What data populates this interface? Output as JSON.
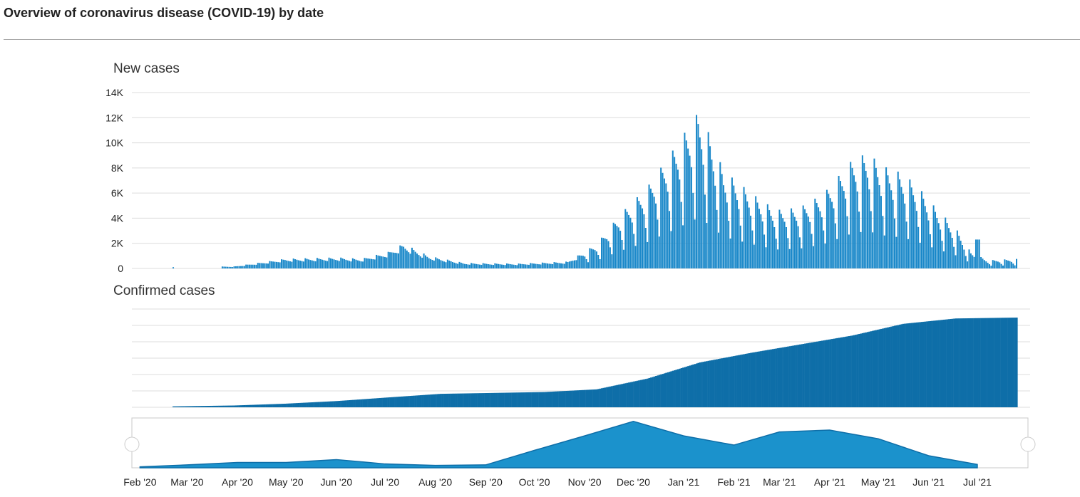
{
  "page": {
    "title": "Overview of coronavirus disease (COVID-19) by date"
  },
  "colors": {
    "bar": "#1a88c9",
    "bar_dark": "#0e6ea8",
    "area": "#1b92cc",
    "grid": "#dcdcdc",
    "navigator_border": "#c8c8c8"
  },
  "chart_data": [
    {
      "type": "bar",
      "title": "New cases",
      "xlabel": "",
      "ylabel": "",
      "ylim": [
        0,
        14000
      ],
      "y_ticks": [
        0,
        2000,
        4000,
        6000,
        8000,
        10000,
        12000,
        14000
      ],
      "y_tick_labels": [
        "0",
        "2K",
        "4K",
        "6K",
        "8K",
        "10K",
        "12K",
        "14K"
      ],
      "grid": true,
      "interval": "daily",
      "x_range": [
        "2020-02-01",
        "2021-07-07"
      ],
      "series": [
        {
          "x": [
            "2020-02-25",
            "2020-04-01",
            "2020-05-01",
            "2020-06-01",
            "2020-06-15",
            "2020-07-01",
            "2020-07-10",
            "2020-07-25",
            "2020-08-15",
            "2020-09-15",
            "2020-10-15",
            "2020-11-01",
            "2020-11-15",
            "2020-12-01",
            "2020-12-15",
            "2020-12-31",
            "2021-01-03",
            "2021-01-15",
            "2021-02-01",
            "2021-02-15",
            "2021-03-01",
            "2021-03-15",
            "2021-04-01",
            "2021-04-10",
            "2021-04-20",
            "2021-05-01",
            "2021-05-10",
            "2021-05-20",
            "2021-06-01",
            "2021-06-10",
            "2021-06-20",
            "2021-07-05"
          ],
          "values": [
            100,
            150,
            700,
            800,
            700,
            1200,
            1800,
            900,
            400,
            350,
            500,
            1800,
            4000,
            6000,
            8500,
            11500,
            11000,
            7200,
            5500,
            4300,
            4500,
            5500,
            8000,
            8500,
            7500,
            7000,
            6000,
            4500,
            3000,
            1200,
            600,
            700
          ]
        }
      ]
    },
    {
      "type": "area",
      "title": "Confirmed cases",
      "xlabel": "",
      "ylabel": "",
      "grid": true,
      "interval": "daily",
      "series": [
        {
          "x": [
            "2020-02-25",
            "2020-04-01",
            "2020-05-01",
            "2020-06-01",
            "2020-07-01",
            "2020-08-01",
            "2020-09-01",
            "2020-10-01",
            "2020-11-01",
            "2020-12-01",
            "2021-01-01",
            "2021-02-01",
            "2021-03-01",
            "2021-04-01",
            "2021-05-01",
            "2021-06-01",
            "2021-07-07"
          ],
          "values": [
            0.01,
            0.02,
            0.04,
            0.07,
            0.11,
            0.15,
            0.16,
            0.17,
            0.2,
            0.32,
            0.5,
            0.61,
            0.7,
            0.8,
            0.93,
            0.99,
            1.0
          ]
        }
      ]
    },
    {
      "type": "area",
      "title": "",
      "role": "range navigator",
      "interval": "monthly",
      "x_ticks": [
        "Feb '20",
        "Mar '20",
        "Apr '20",
        "May '20",
        "Jun '20",
        "Jul '20",
        "Aug '20",
        "Sep '20",
        "Oct '20",
        "Nov '20",
        "Dec '20",
        "Jan '21",
        "Feb '21",
        "Mar '21",
        "Apr '21",
        "May '21",
        "Jun '21",
        "Jul '21"
      ],
      "series": [
        {
          "x": [
            "2020-02-01",
            "2020-03-01",
            "2020-04-01",
            "2020-05-01",
            "2020-06-01",
            "2020-07-01",
            "2020-08-01",
            "2020-09-01",
            "2020-10-01",
            "2020-11-01",
            "2020-12-01",
            "2021-01-01",
            "2021-02-01",
            "2021-03-01",
            "2021-04-01",
            "2021-05-01",
            "2021-06-01",
            "2021-07-01"
          ],
          "values": [
            0.02,
            0.06,
            0.11,
            0.11,
            0.17,
            0.08,
            0.05,
            0.06,
            0.36,
            0.66,
            0.96,
            0.66,
            0.47,
            0.74,
            0.78,
            0.6,
            0.25,
            0.07
          ]
        }
      ]
    }
  ]
}
